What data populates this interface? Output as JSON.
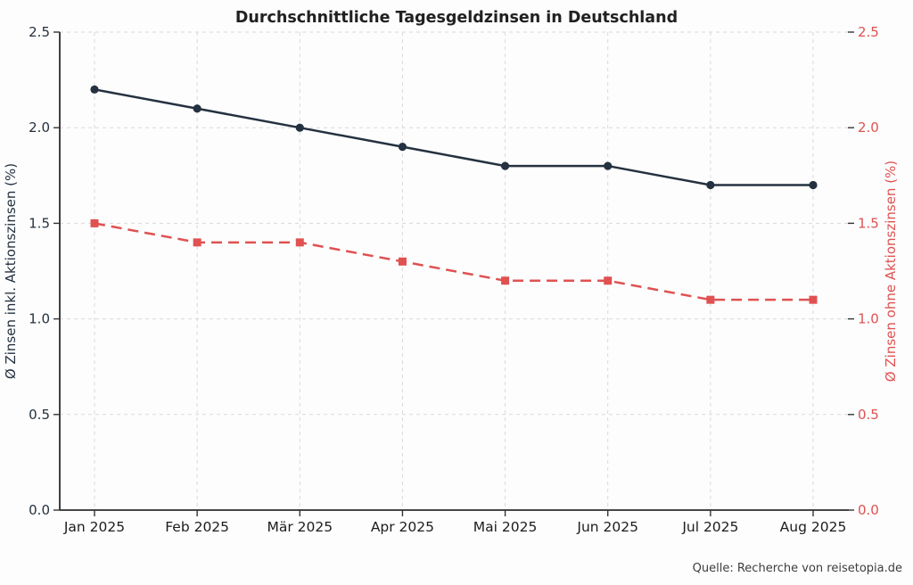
{
  "chart_data": {
    "type": "line",
    "title": "Durchschnittliche Tagesgeldzinsen in Deutschland",
    "categories": [
      "Jan 2025",
      "Feb 2025",
      "Mär 2025",
      "Apr 2025",
      "Mai 2025",
      "Jun 2025",
      "Jul 2025",
      "Aug 2025"
    ],
    "series": [
      {
        "name": "Ø Zinsen inkl. Aktionszinsen (%)",
        "axis": "left",
        "values": [
          2.2,
          2.1,
          2.0,
          1.9,
          1.8,
          1.8,
          1.7,
          1.7
        ],
        "color": "#243140",
        "line_style": "solid",
        "marker": "circle"
      },
      {
        "name": "Ø Zinsen ohne Aktionszinsen (%)",
        "axis": "right",
        "values": [
          1.5,
          1.4,
          1.4,
          1.3,
          1.2,
          1.2,
          1.1,
          1.1
        ],
        "color": "#e05151",
        "line_style": "dashed",
        "marker": "square"
      }
    ],
    "ylabel_left": "Ø Zinsen inkl. Aktionszinsen (%)",
    "ylabel_right": "Ø Zinsen ohne Aktionszinsen (%)",
    "ylim": [
      0.0,
      2.5
    ],
    "yticks": [
      0.0,
      0.5,
      1.0,
      1.5,
      2.0,
      2.5
    ],
    "ytick_decimals": 1,
    "grid": true,
    "legend": "none"
  },
  "source": {
    "text": "Quelle: Recherche von reisetopia.de"
  },
  "colors": {
    "grid": "#d9d9d9",
    "spine": "#2b2b2b",
    "tick": "#333333",
    "title": "#212121",
    "xtick_label": "#1c1c1c",
    "source": "#3d3d3d",
    "background": "#fdfdfd"
  }
}
